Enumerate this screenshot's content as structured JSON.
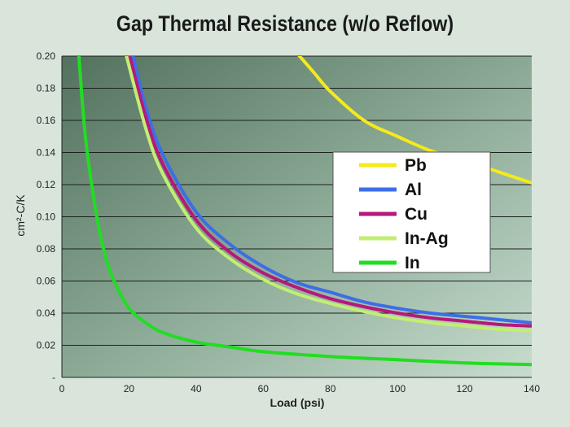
{
  "chart_data": {
    "type": "line",
    "title": "Gap Thermal Resistance (w/o Reflow)",
    "xlabel": "Load (psi)",
    "ylabel": "cm²-C/K",
    "xlim": [
      0,
      140
    ],
    "ylim": [
      0,
      0.2
    ],
    "x_ticks": [
      "0",
      "20",
      "40",
      "60",
      "80",
      "100",
      "120",
      "140"
    ],
    "y_ticks": [
      "-",
      "0.02",
      "0.04",
      "0.06",
      "0.08",
      "0.10",
      "0.12",
      "0.14",
      "0.16",
      "0.18",
      "0.20"
    ],
    "grid": "horizontal",
    "legend_position": "right",
    "series": [
      {
        "name": "Pb",
        "color": "#f5ea1a",
        "x": [
          70,
          75,
          80,
          90,
          100,
          110,
          120,
          130,
          140
        ],
        "y": [
          0.202,
          0.19,
          0.178,
          0.16,
          0.15,
          0.141,
          0.135,
          0.128,
          0.121
        ]
      },
      {
        "name": "Al",
        "color": "#3c6ee6",
        "x": [
          21,
          25,
          30,
          40,
          50,
          60,
          70,
          80,
          90,
          100,
          110,
          120,
          130,
          140
        ],
        "y": [
          0.202,
          0.168,
          0.139,
          0.103,
          0.083,
          0.069,
          0.059,
          0.053,
          0.047,
          0.043,
          0.04,
          0.038,
          0.036,
          0.034
        ]
      },
      {
        "name": "Cu",
        "color": "#b5197a",
        "x": [
          20,
          25,
          30,
          40,
          50,
          60,
          70,
          80,
          90,
          100,
          110,
          120,
          130,
          140
        ],
        "y": [
          0.202,
          0.162,
          0.133,
          0.098,
          0.078,
          0.065,
          0.056,
          0.049,
          0.044,
          0.04,
          0.037,
          0.035,
          0.033,
          0.032
        ]
      },
      {
        "name": "In-Ag",
        "color": "#c2ee72",
        "x": [
          19,
          25,
          30,
          40,
          50,
          60,
          70,
          80,
          90,
          100,
          110,
          120,
          130,
          140
        ],
        "y": [
          0.202,
          0.155,
          0.127,
          0.093,
          0.074,
          0.061,
          0.052,
          0.046,
          0.041,
          0.037,
          0.034,
          0.032,
          0.03,
          0.029
        ]
      },
      {
        "name": "In",
        "color": "#22dd22",
        "x": [
          5,
          7,
          10,
          13,
          16,
          20,
          25,
          30,
          40,
          50,
          60,
          80,
          100,
          120,
          140
        ],
        "y": [
          0.202,
          0.15,
          0.105,
          0.075,
          0.058,
          0.043,
          0.034,
          0.028,
          0.022,
          0.019,
          0.016,
          0.013,
          0.011,
          0.009,
          0.008
        ]
      }
    ]
  }
}
